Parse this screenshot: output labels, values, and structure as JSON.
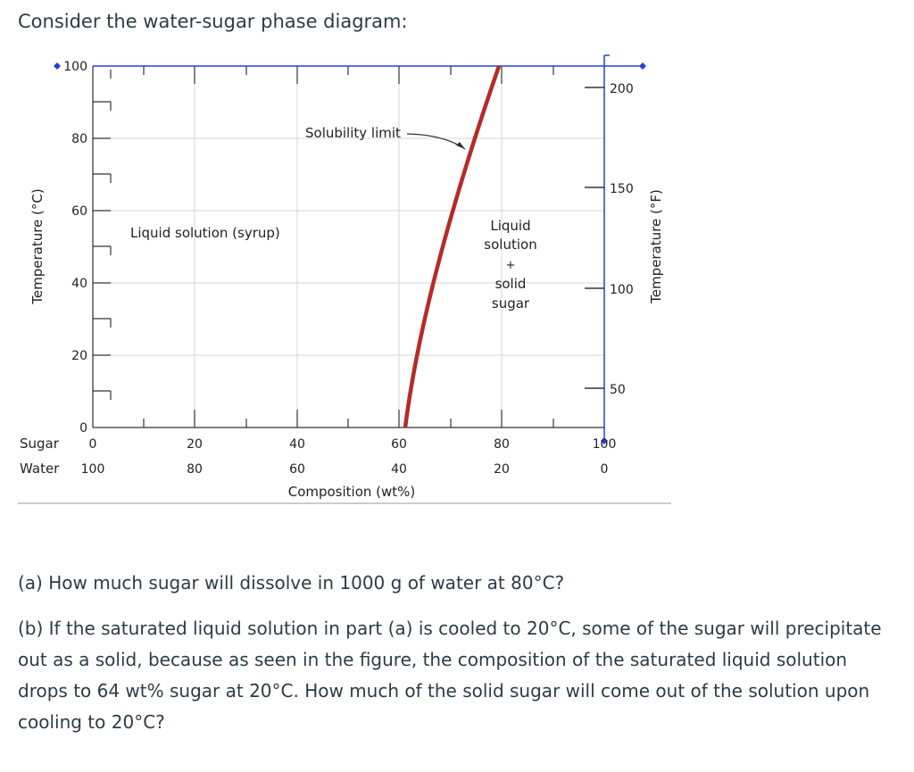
{
  "intro": "Consider the water-sugar phase diagram:",
  "questions": {
    "a": "(a) How much sugar will dissolve in 1000 g of water at 80°C?",
    "b": "(b) If the saturated liquid solution in part (a) is cooled to 20°C, some of the sugar will precipitate out as a solid, because as seen in the figure, the composition of the saturated liquid solution drops to 64 wt% sugar at 20°C. How much of the solid sugar will come out of the solution upon cooling to 20°C?"
  },
  "diagram": {
    "left_axis_label": "Temperature (°C)",
    "right_axis_label": "Temperature (°F)",
    "x_axis_label": "Composition (wt%)",
    "row_labels": {
      "sugar": "Sugar",
      "water": "Water"
    },
    "left_ticks": [
      "100",
      "80",
      "60",
      "40",
      "20",
      "0"
    ],
    "right_ticks": [
      "200",
      "150",
      "100",
      "50"
    ],
    "sugar_ticks": [
      "0",
      "20",
      "40",
      "60",
      "80",
      "100"
    ],
    "water_ticks": [
      "100",
      "80",
      "60",
      "40",
      "20",
      "0"
    ],
    "region_liquid": "Liquid solution (syrup)",
    "region_two_phase": [
      "Liquid",
      "solution",
      "+",
      "solid",
      "sugar"
    ],
    "solubility_label": "Solubility limit",
    "colors": {
      "curve": "#b52b27",
      "overlay": "#2a3fd6",
      "frame": "#555555"
    }
  }
}
